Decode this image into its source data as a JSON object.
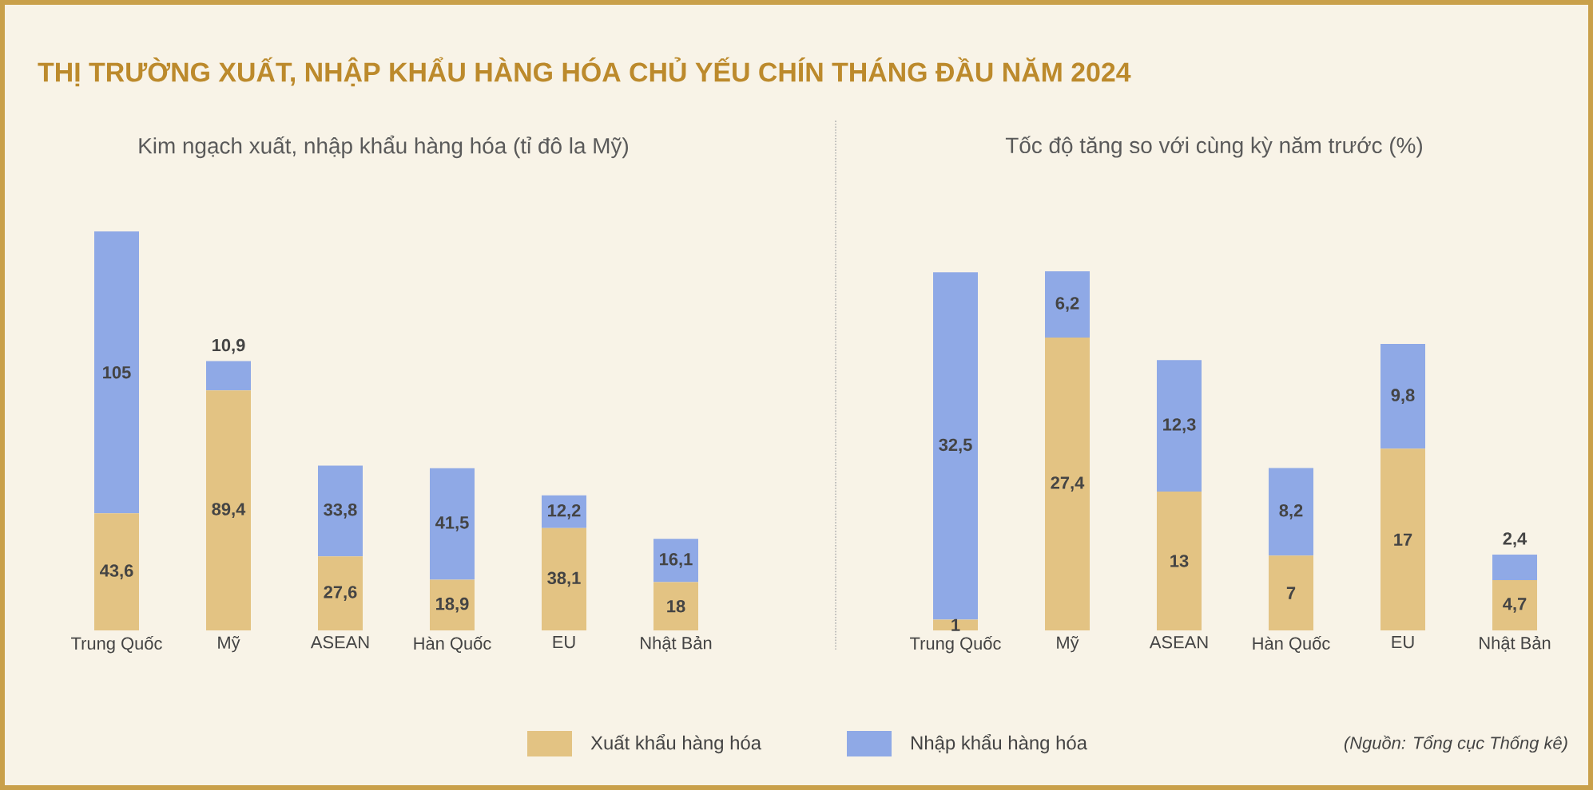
{
  "chart_data": [
    {
      "type": "bar",
      "stacked": true,
      "tick_labels": "x",
      "legend": "bottom",
      "title": "THỊ TRƯỜNG XUẤT, NHẬP KHẨU HÀNG HÓA CHỦ YẾU CHÍN THÁNG ĐẦU NĂM 2024",
      "subtitle": "Kim ngạch xuất, nhập khẩu hàng hóa (tỉ đô la Mỹ)",
      "categories": [
        "Trung Quốc",
        "Mỹ",
        "ASEAN",
        "Hàn Quốc",
        "EU",
        "Nhật Bản"
      ],
      "series": [
        {
          "name": "Xuất khẩu hàng hóa",
          "color": "#e3c383",
          "values": [
            43.6,
            89.4,
            27.6,
            18.9,
            38.1,
            18
          ],
          "value_labels": [
            "43,6",
            "89,4",
            "27,6",
            "18,9",
            "38,1",
            "18"
          ]
        },
        {
          "name": "Nhập khẩu hàng hóa",
          "color": "#8fa9e6",
          "values": [
            105,
            10.9,
            33.8,
            41.5,
            12.2,
            16.1
          ],
          "value_labels": [
            "105",
            "10,9",
            "33,8",
            "41,5",
            "12,2",
            "16,1"
          ]
        }
      ]
    },
    {
      "type": "bar",
      "stacked": true,
      "tick_labels": "x",
      "subtitle": "Tốc độ tăng so với cùng kỳ năm trước (%)",
      "categories": [
        "Trung Quốc",
        "Mỹ",
        "ASEAN",
        "Hàn Quốc",
        "EU",
        "Nhật Bản"
      ],
      "series": [
        {
          "color": "#e3c383",
          "values": [
            1,
            27.4,
            13,
            7,
            17,
            4.7
          ],
          "value_labels": [
            "1",
            "27,4",
            "13",
            "7",
            "17",
            "4,7"
          ]
        },
        {
          "color": "#8fa9e6",
          "values": [
            32.5,
            6.2,
            12.3,
            8.2,
            9.8,
            2.4
          ],
          "value_labels": [
            "32,5",
            "6,2",
            "12,3",
            "8,2",
            "9,8",
            "2,4"
          ]
        }
      ],
      "annotations": [
        "(Nguồn: Tổng cục Thống kê)"
      ]
    }
  ]
}
